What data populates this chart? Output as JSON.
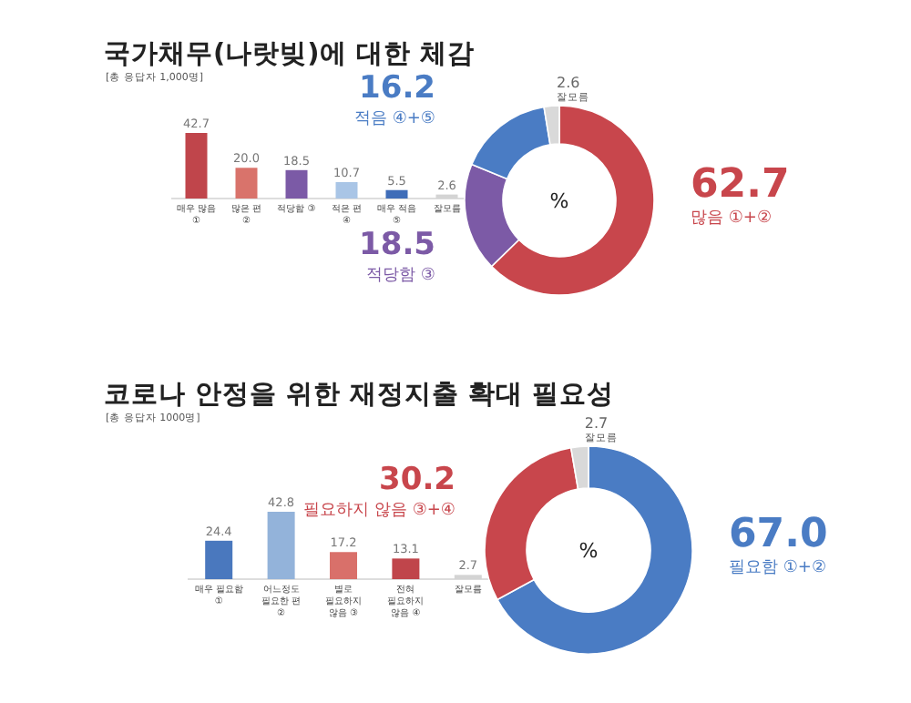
{
  "chart_data": [
    {
      "type": "bar",
      "title": "국가채무(나랏빚)에 대한 체감",
      "subtitle": "[총 응답자 1,000명]",
      "categories": [
        "매우 많음 ①",
        "많은 편 ②",
        "적당함 ③",
        "적은 편 ④",
        "매우 적음 ⑤",
        "잘모름"
      ],
      "values": [
        42.7,
        20.0,
        18.5,
        10.7,
        5.5,
        2.6
      ],
      "value_labels": [
        "42.7",
        "20.0",
        "18.5",
        "10.7",
        "5.5",
        "2.6"
      ],
      "colors": [
        "#c0454b",
        "#d9736b",
        "#7b5aa6",
        "#a9c5e6",
        "#3f6db8",
        "#d4d4d4"
      ]
    },
    {
      "type": "donut",
      "categories": [
        "많음 ①+②",
        "적당함 ③",
        "적음 ④+⑤",
        "잘모름"
      ],
      "values": [
        62.7,
        18.5,
        16.2,
        2.6
      ],
      "value_labels": [
        "62.7",
        "18.5",
        "16.2",
        "2.6"
      ],
      "colors": [
        "#c8464c",
        "#7c5aa6",
        "#4a7cc4",
        "#d9d9d9"
      ],
      "annotations": [
        "%"
      ]
    },
    {
      "type": "bar",
      "title": "코로나 안정을 위한 재정지출 확대 필요성",
      "subtitle": "[총 응답자 1000명]",
      "categories": [
        "매우 필요함 ①",
        "어느정도 필요한 편 ②",
        "별로 필요하지 않음 ③",
        "전혀 필요하지 않음 ④",
        "잘모름"
      ],
      "values": [
        24.4,
        42.8,
        17.2,
        13.1,
        2.7
      ],
      "value_labels": [
        "24.4",
        "42.8",
        "17.2",
        "13.1",
        "2.7"
      ],
      "colors": [
        "#4a78be",
        "#93b3da",
        "#d9706a",
        "#c0454b",
        "#d4d4d4"
      ]
    },
    {
      "type": "donut",
      "categories": [
        "필요함 ①+②",
        "필요하지 않음 ③+④",
        "잘모름"
      ],
      "values": [
        67.0,
        30.2,
        2.7
      ],
      "value_labels": [
        "67.0",
        "30.2",
        "2.7"
      ],
      "colors": [
        "#4a7cc4",
        "#c8464c",
        "#d9d9d9"
      ],
      "annotations": [
        "%"
      ]
    }
  ]
}
